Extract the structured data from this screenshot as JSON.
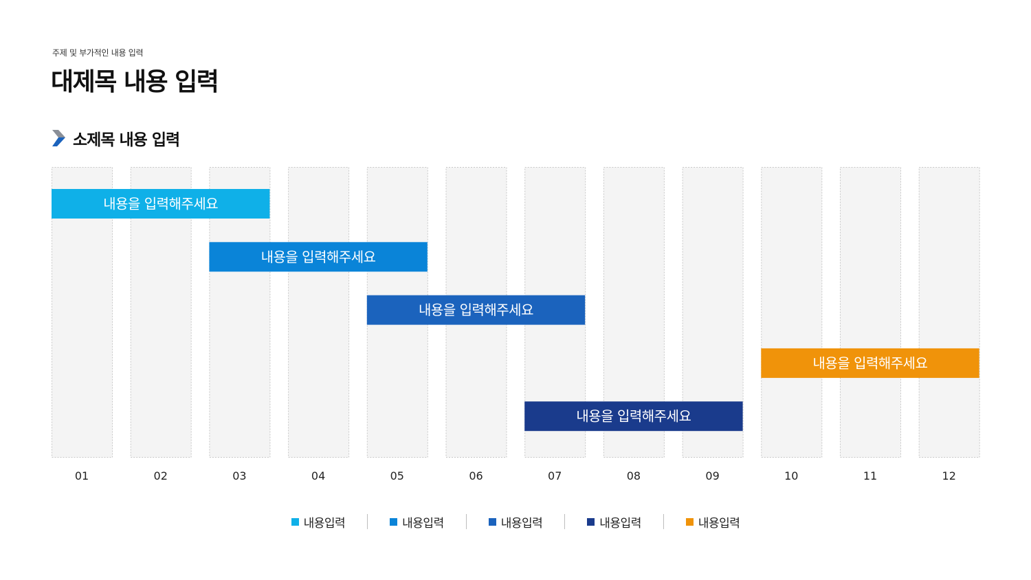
{
  "header": {
    "subtitle": "주제 및 부가적인 내용 입력",
    "title": "대제목 내용 입력",
    "section_title": "소제목 내용 입력",
    "section_icon": "chevron-right-icon"
  },
  "chart_data": {
    "type": "bar",
    "subtype": "gantt",
    "categories": [
      "01",
      "02",
      "03",
      "04",
      "05",
      "06",
      "07",
      "08",
      "09",
      "10",
      "11",
      "12"
    ],
    "tasks": [
      {
        "label": "내용을 입력해주세요",
        "start": 1,
        "end": 3,
        "row": 1,
        "color": "#0fb0e8"
      },
      {
        "label": "내용을 입력해주세요",
        "start": 3,
        "end": 5,
        "row": 2,
        "color": "#0a84d8"
      },
      {
        "label": "내용을 입력해주세요",
        "start": 5,
        "end": 7,
        "row": 3,
        "color": "#1b63bd"
      },
      {
        "label": "내용을 입력해주세요",
        "start": 10,
        "end": 12,
        "row": 4,
        "color": "#f0930a"
      },
      {
        "label": "내용을 입력해주세요",
        "start": 7,
        "end": 9,
        "row": 5,
        "color": "#1a3b8c"
      }
    ],
    "legend": [
      {
        "label": "내용입력",
        "color": "#0fb0e8"
      },
      {
        "label": "내용입력",
        "color": "#0a84d8"
      },
      {
        "label": "내용입력",
        "color": "#1b63bd"
      },
      {
        "label": "내용입력",
        "color": "#1a3b8c"
      },
      {
        "label": "내용입력",
        "color": "#f0930a"
      }
    ],
    "legend_position": "bottom-center",
    "grid": true
  }
}
